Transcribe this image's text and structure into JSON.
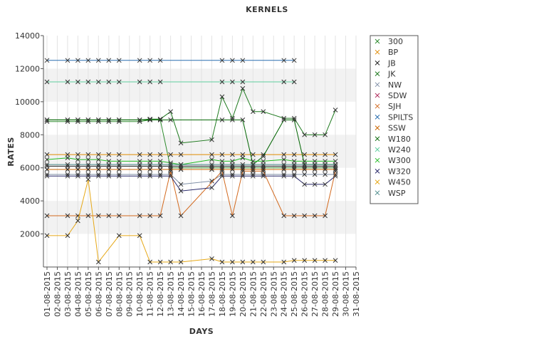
{
  "chart_data": {
    "type": "line",
    "title": "KERNELS",
    "xlabel": "DAYS",
    "ylabel": "RATES",
    "ylim": [
      0,
      14000
    ],
    "yticks": [
      2000,
      4000,
      6000,
      8000,
      10000,
      12000,
      14000
    ],
    "grid": "horizontal alternating bands",
    "legend_position": "right",
    "categories": [
      "01-08-2015",
      "02-08-2015",
      "03-08-2015",
      "04-08-2015",
      "05-08-2015",
      "06-08-2015",
      "07-08-2015",
      "08-08-2015",
      "09-08-2015",
      "10-08-2015",
      "11-08-2015",
      "12-08-2015",
      "13-08-2015",
      "14-08-2015",
      "15-08-2015",
      "16-08-2015",
      "17-08-2015",
      "18-08-2015",
      "19-08-2015",
      "20-08-2015",
      "21-08-2015",
      "22-08-2015",
      "23-08-2015",
      "24-08-2015",
      "25-08-2015",
      "26-08-2015",
      "27-08-2015",
      "28-08-2015",
      "29-08-2015",
      "30-08-2015",
      "31-08-2015"
    ],
    "series": [
      {
        "name": "300",
        "color": "#2e8b2e",
        "values": [
          8800,
          null,
          8800,
          8800,
          8800,
          8800,
          8800,
          8800,
          null,
          8800,
          8900,
          8900,
          6000,
          6000,
          null,
          null,
          6000,
          6000,
          6000,
          6000,
          6000,
          6000,
          null,
          6000,
          6000,
          6000,
          6000,
          6000,
          6000,
          null,
          null
        ]
      },
      {
        "name": "BP",
        "color": "#e08a00",
        "values": [
          6800,
          null,
          6800,
          6800,
          6800,
          6800,
          6800,
          6800,
          null,
          6800,
          6800,
          6800,
          6800,
          6800,
          null,
          null,
          6800,
          6800,
          6800,
          6800,
          6800,
          6800,
          null,
          6800,
          6800,
          6800,
          6800,
          6800,
          6800,
          null,
          null
        ]
      },
      {
        "name": "JB",
        "color": "#222222",
        "values": [
          6100,
          null,
          6100,
          6100,
          6100,
          6100,
          6100,
          6100,
          null,
          6100,
          6100,
          6100,
          6100,
          6100,
          null,
          null,
          6100,
          6100,
          6100,
          6100,
          6100,
          6100,
          null,
          6100,
          6100,
          6100,
          6100,
          6100,
          6100,
          null,
          null
        ]
      },
      {
        "name": "JK",
        "color": "#1f7a1f",
        "values": [
          8900,
          null,
          8900,
          8900,
          8900,
          8900,
          8900,
          8900,
          null,
          8900,
          8950,
          8950,
          9400,
          7500,
          null,
          null,
          7700,
          10300,
          9000,
          10800,
          9400,
          9400,
          null,
          9000,
          9000,
          8000,
          8000,
          8000,
          9500,
          null,
          null
        ]
      },
      {
        "name": "NW",
        "color": "#7f8fa6",
        "values": [
          5600,
          null,
          5600,
          5600,
          5600,
          5600,
          5600,
          5600,
          null,
          5600,
          5600,
          5600,
          5600,
          5000,
          null,
          null,
          5200,
          5600,
          5600,
          5600,
          5600,
          5600,
          null,
          5600,
          5600,
          5600,
          5600,
          5600,
          5600,
          null,
          null
        ]
      },
      {
        "name": "SDW",
        "color": "#b03060",
        "values": [
          5900,
          null,
          5900,
          5900,
          5900,
          5900,
          5900,
          5900,
          null,
          5900,
          5900,
          5900,
          5900,
          5900,
          null,
          null,
          5900,
          5900,
          5900,
          5900,
          5900,
          5900,
          null,
          5900,
          5900,
          5900,
          5900,
          5900,
          5900,
          null,
          null
        ]
      },
      {
        "name": "SJH",
        "color": "#d2691e",
        "values": [
          3100,
          null,
          3100,
          3100,
          3100,
          3100,
          3100,
          3100,
          null,
          3100,
          3100,
          3100,
          5800,
          3100,
          null,
          null,
          null,
          5800,
          3100,
          5800,
          5800,
          5800,
          null,
          3100,
          3100,
          3100,
          3100,
          3100,
          5800,
          null,
          null
        ]
      },
      {
        "name": "SPILTS",
        "color": "#2a6fb0",
        "values": [
          12500,
          null,
          12500,
          12500,
          12500,
          12500,
          12500,
          12500,
          null,
          12500,
          12500,
          12500,
          null,
          null,
          null,
          null,
          null,
          12500,
          12500,
          12500,
          null,
          null,
          null,
          12500,
          12500,
          null,
          null,
          null,
          null,
          null,
          null
        ]
      },
      {
        "name": "SSW",
        "color": "#cc6600",
        "values": [
          5900,
          null,
          5900,
          5900,
          5900,
          5900,
          5900,
          5900,
          null,
          5900,
          5900,
          5900,
          5900,
          5900,
          null,
          null,
          5900,
          5900,
          5900,
          5900,
          5900,
          5900,
          null,
          5900,
          5900,
          5900,
          5900,
          5900,
          5900,
          null,
          null
        ]
      },
      {
        "name": "W180",
        "color": "#006400",
        "values": [
          8900,
          null,
          8900,
          8900,
          8900,
          8900,
          8900,
          8900,
          null,
          8900,
          8900,
          8900,
          8900,
          null,
          null,
          null,
          null,
          8900,
          8900,
          8900,
          6200,
          6700,
          null,
          8900,
          8900,
          6200,
          6200,
          6200,
          6200,
          null,
          null
        ]
      },
      {
        "name": "W240",
        "color": "#5fcf9f",
        "values": [
          11200,
          null,
          11200,
          11200,
          11200,
          11200,
          11200,
          11200,
          null,
          11200,
          11200,
          11200,
          null,
          null,
          null,
          null,
          null,
          11200,
          11200,
          11200,
          null,
          null,
          null,
          11200,
          11200,
          null,
          null,
          null,
          null,
          null,
          null
        ]
      },
      {
        "name": "W300",
        "color": "#22bb22",
        "values": [
          6500,
          null,
          6600,
          6500,
          6500,
          6500,
          6400,
          6400,
          null,
          6400,
          6400,
          6400,
          6300,
          6200,
          null,
          null,
          6500,
          6400,
          6400,
          6600,
          6400,
          6400,
          null,
          6500,
          6400,
          6400,
          6400,
          6400,
          6400,
          null,
          null
        ]
      },
      {
        "name": "W320",
        "color": "#2b2b6b",
        "values": [
          5500,
          null,
          5500,
          5500,
          5500,
          5500,
          5500,
          5500,
          null,
          5500,
          5500,
          5500,
          5500,
          4600,
          null,
          null,
          4800,
          5500,
          5500,
          5500,
          5500,
          5500,
          null,
          5500,
          5500,
          5000,
          5000,
          5000,
          5500,
          null,
          null
        ]
      },
      {
        "name": "W450",
        "color": "#e6a817",
        "values": [
          1900,
          null,
          1900,
          2800,
          5300,
          300,
          null,
          1900,
          null,
          1900,
          300,
          300,
          300,
          300,
          null,
          null,
          500,
          300,
          300,
          300,
          300,
          300,
          null,
          300,
          400,
          400,
          400,
          400,
          400,
          null,
          null
        ]
      },
      {
        "name": "WSP",
        "color": "#4a8a8a",
        "values": [
          6200,
          null,
          6200,
          6200,
          6200,
          6200,
          6200,
          6200,
          null,
          6200,
          6200,
          6200,
          6200,
          6200,
          null,
          null,
          6200,
          6200,
          6200,
          6200,
          6200,
          6200,
          null,
          6200,
          6200,
          6200,
          6200,
          6200,
          6200,
          null,
          null
        ]
      }
    ]
  }
}
